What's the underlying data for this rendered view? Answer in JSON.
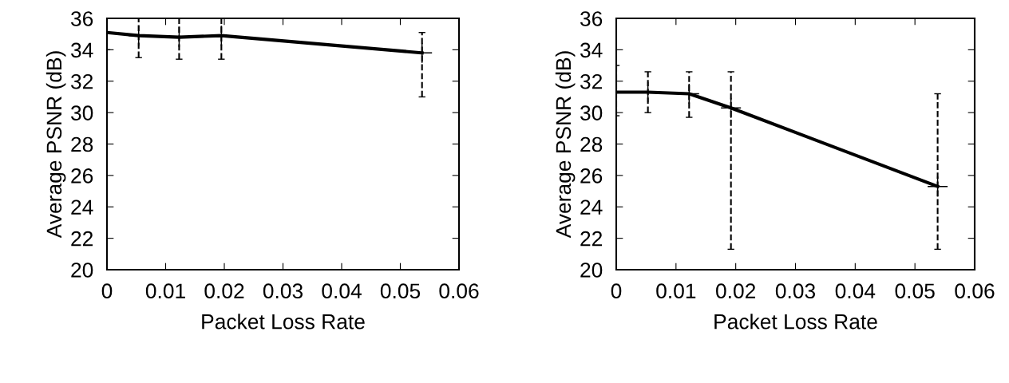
{
  "chart_data": [
    {
      "type": "line",
      "xlabel": "Packet Loss Rate",
      "ylabel": "Average PSNR (dB)",
      "xlim": [
        0,
        0.06
      ],
      "xticks": [
        0,
        0.01,
        0.02,
        0.03,
        0.04,
        0.05,
        0.06
      ],
      "ylim": [
        20,
        36
      ],
      "yticks": [
        20,
        22,
        24,
        26,
        28,
        30,
        32,
        34,
        36
      ],
      "marker": "cross",
      "grid": false,
      "legend": false,
      "series": [
        {
          "color": "#000000",
          "x": [
            0,
            0.0054,
            0.0123,
            0.0195,
            0.0537
          ],
          "values": [
            35.1,
            34.9,
            34.8,
            34.9,
            33.8
          ],
          "errors": [
            [
              34.0,
              36.0
            ],
            [
              33.5,
              36.0
            ],
            [
              33.4,
              36.0
            ],
            [
              33.4,
              36.0
            ],
            [
              31.0,
              35.1
            ]
          ]
        }
      ]
    },
    {
      "type": "line",
      "xlabel": "Packet Loss Rate",
      "ylabel": "Average PSNR (dB)",
      "xlim": [
        0,
        0.06
      ],
      "xticks": [
        0,
        0.01,
        0.02,
        0.03,
        0.04,
        0.05,
        0.06
      ],
      "ylim": [
        20,
        36
      ],
      "yticks": [
        20,
        22,
        24,
        26,
        28,
        30,
        32,
        34,
        36
      ],
      "marker": "cross",
      "grid": false,
      "legend": false,
      "series": [
        {
          "color": "#000000",
          "x": [
            0,
            0.0053,
            0.0122,
            0.0192,
            0.0538
          ],
          "values": [
            31.3,
            31.3,
            31.2,
            30.3,
            25.3
          ],
          "errors": [
            [
              29.8,
              33.0
            ],
            [
              30.0,
              32.6
            ],
            [
              29.7,
              32.6
            ],
            [
              21.3,
              32.6
            ],
            [
              21.3,
              31.2
            ]
          ]
        }
      ]
    }
  ]
}
